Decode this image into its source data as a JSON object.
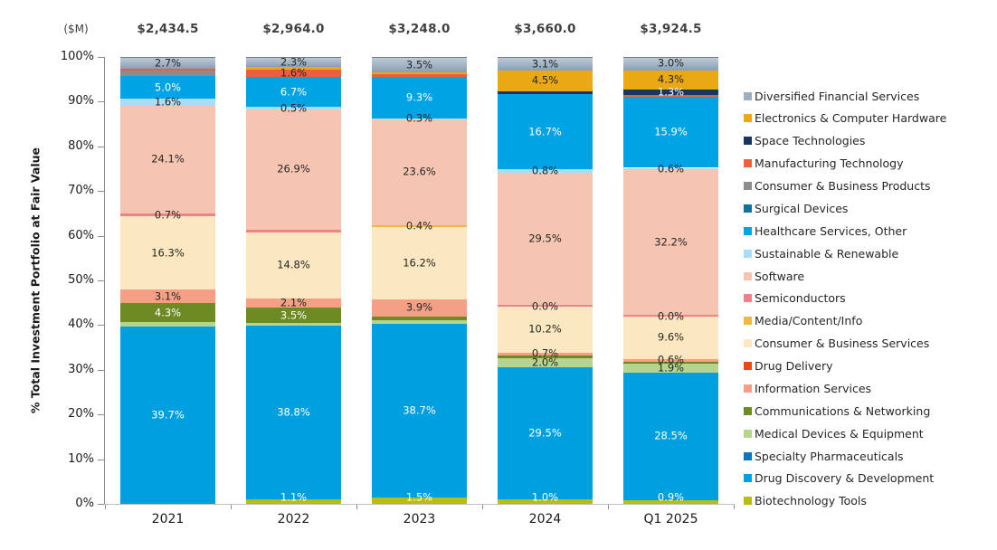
{
  "header": {
    "currency_note": "($M)",
    "totals": [
      "$2,434.5",
      "$2,964.0",
      "$3,248.0",
      "$3,660.0",
      "$3,924.5"
    ]
  },
  "y_axis": {
    "title": "% Total Investment Portfolio at Fair Value",
    "ticks": [
      "100%",
      "90%",
      "80%",
      "70%",
      "60%",
      "50%",
      "40%",
      "30%",
      "20%",
      "10%",
      "0%"
    ]
  },
  "x_axis": {
    "categories": [
      "2021",
      "2022",
      "2023",
      "2024",
      "Q1 2025"
    ]
  },
  "chart_data": {
    "type": "bar",
    "subtype": "100%-stacked-column",
    "title": "",
    "xlabel": "",
    "ylabel": "% Total Investment Portfolio at Fair Value",
    "ylim": [
      0,
      100
    ],
    "grid": false,
    "legend_position": "right",
    "stack_order": "top-to-bottom",
    "categories": [
      "2021",
      "2022",
      "2023",
      "2024",
      "Q1 2025"
    ],
    "totals_label": "($M)",
    "totals_musd": [
      2434.5,
      2964.0,
      3248.0,
      3660.0,
      3924.5
    ],
    "series": [
      {
        "name": "Diversified Financial Services",
        "color": "#9cafc1",
        "values": [
          2.7,
          2.3,
          3.5,
          3.1,
          3.0
        ],
        "labels": [
          "2.7%",
          "2.3%",
          "3.5%",
          "3.1%",
          "3.0%"
        ],
        "label_color": "#262626"
      },
      {
        "name": "Electronics & Computer Hardware",
        "color": "#eaa814",
        "values": [
          0,
          0.6,
          0.4,
          4.5,
          4.3
        ],
        "labels": [
          null,
          null,
          null,
          "4.5%",
          "4.3%"
        ],
        "label_color": "#262626"
      },
      {
        "name": "Space Technologies",
        "color": "#17375e",
        "values": [
          0,
          0,
          0,
          0.8,
          1.3
        ],
        "labels": [
          null,
          null,
          null,
          null,
          "1.3%"
        ],
        "label_color": "#ffffff"
      },
      {
        "name": "Manufacturing Technology",
        "color": "#ed5f3c",
        "values": [
          0.4,
          1.6,
          0.5,
          0,
          0.3
        ],
        "labels": [
          null,
          "1.6%",
          null,
          null,
          null
        ],
        "label_color": "#262626"
      },
      {
        "name": "Consumer & Business Products",
        "color": "#8c8c8c",
        "values": [
          1.2,
          0,
          0,
          0,
          0
        ],
        "labels": [
          null,
          null,
          null,
          null,
          null
        ],
        "label_color": "#262626"
      },
      {
        "name": "Surgical Devices",
        "color": "#11719f",
        "values": [
          0,
          0,
          0,
          0,
          0
        ],
        "labels": [
          null,
          null,
          null,
          null,
          null
        ],
        "label_color": "#ffffff"
      },
      {
        "name": "Healthcare Services, Other",
        "color": "#00a3e4",
        "values": [
          5.0,
          6.7,
          9.3,
          16.7,
          15.9
        ],
        "labels": [
          "5.0%",
          "6.7%",
          "9.3%",
          "16.7%",
          "15.9%"
        ],
        "label_color": "#ffffff"
      },
      {
        "name": "Sustainable & Renewable",
        "color": "#a9dcf6",
        "values": [
          1.6,
          0.5,
          0.3,
          0.8,
          0.6
        ],
        "labels": [
          "1.6%",
          "0.5%",
          "0.3%",
          "0.8%",
          "0.6%"
        ],
        "label_color": "#262626"
      },
      {
        "name": "Software",
        "color": "#f6c5b2",
        "values": [
          24.1,
          26.9,
          23.6,
          29.5,
          32.2
        ],
        "labels": [
          "24.1%",
          "26.9%",
          "23.6%",
          "29.5%",
          "32.2%"
        ],
        "label_color": "#262626"
      },
      {
        "name": "Semiconductors",
        "color": "#f0808a",
        "values": [
          0.7,
          0.6,
          0,
          0.5,
          0.4
        ],
        "labels": [
          "0.7%",
          null,
          null,
          null,
          null
        ],
        "label_color": "#262626"
      },
      {
        "name": "Media/Content/Info",
        "color": "#efb93f",
        "values": [
          0,
          0,
          0.4,
          0.0,
          0.0
        ],
        "labels": [
          null,
          null,
          "0.4%",
          "0.0%",
          "0.0%"
        ],
        "label_color": "#262626"
      },
      {
        "name": "Consumer & Business Services",
        "color": "#fbe8c0",
        "values": [
          16.3,
          14.8,
          16.2,
          10.2,
          9.6
        ],
        "labels": [
          "16.3%",
          "14.8%",
          "16.2%",
          "10.2%",
          "9.6%"
        ],
        "label_color": "#262626"
      },
      {
        "name": "Drug Delivery",
        "color": "#e64a19",
        "values": [
          0,
          0,
          0,
          0,
          0
        ],
        "labels": [
          null,
          null,
          null,
          null,
          null
        ],
        "label_color": "#262626"
      },
      {
        "name": "Information Services",
        "color": "#f5a085",
        "values": [
          3.1,
          2.1,
          3.9,
          0.7,
          0.6
        ],
        "labels": [
          "3.1%",
          "2.1%",
          "3.9%",
          "0.7%",
          "0.6%"
        ],
        "label_color": "#262626"
      },
      {
        "name": "Communications & Networking",
        "color": "#6e8b23",
        "values": [
          4.3,
          3.5,
          0.9,
          0.7,
          0.5
        ],
        "labels": [
          "4.3%",
          "3.5%",
          null,
          null,
          null
        ],
        "label_color": "#ffffff"
      },
      {
        "name": "Medical Devices & Equipment",
        "color": "#b5d48e",
        "values": [
          0.9,
          0.5,
          0.8,
          2.0,
          1.9
        ],
        "labels": [
          null,
          null,
          null,
          "2.0%",
          "1.9%"
        ],
        "label_color": "#262626"
      },
      {
        "name": "Specialty Pharmaceuticals",
        "color": "#1173b8",
        "values": [
          0,
          0,
          0,
          0,
          0
        ],
        "labels": [
          null,
          null,
          null,
          null,
          null
        ],
        "label_color": "#ffffff"
      },
      {
        "name": "Drug Discovery & Development",
        "color": "#00a0e0",
        "values": [
          39.7,
          38.8,
          38.7,
          29.5,
          28.5
        ],
        "labels": [
          "39.7%",
          "38.8%",
          "38.7%",
          "29.5%",
          "28.5%"
        ],
        "label_color": "#ffffff"
      },
      {
        "name": "Biotechnology Tools",
        "color": "#b9bd12",
        "values": [
          0,
          1.1,
          1.5,
          1.0,
          0.9
        ],
        "labels": [
          null,
          "1.1%",
          "1.5%",
          "1.0%",
          "0.9%"
        ],
        "label_color": "#ffffff"
      }
    ]
  }
}
